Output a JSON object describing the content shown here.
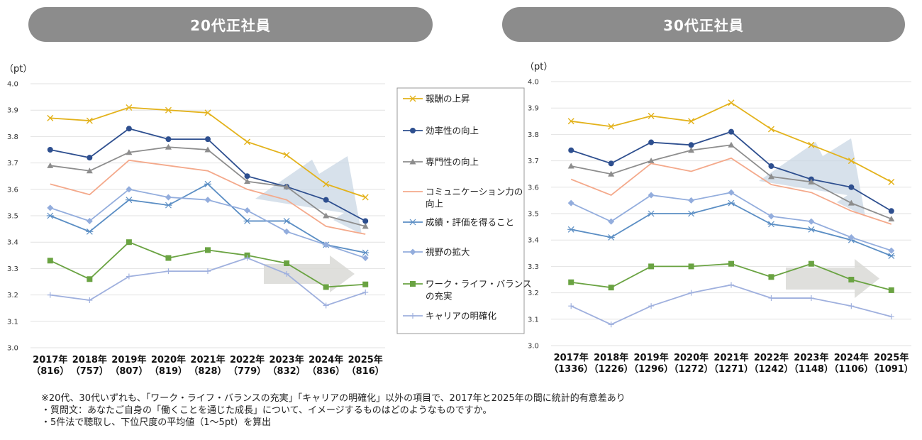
{
  "headers": {
    "left": "20代正社員",
    "right": "30代正社員"
  },
  "notes": [
    "※20代、30代いずれも、「ワーク・ライフ・バランスの充実」「キャリアの明確化」以外の項目で、2017年と2025年の間に統計的有意差あり",
    "・質問文：あなたご自身の「働くことを通じた成長」について、イメージするものはどのようなものですか。",
    "・5件法で聴取し、下位尺度の平均値（1～5pt）を算出"
  ],
  "legend": [
    {
      "label": [
        "報酬の上昇"
      ],
      "color": "#e3b21b",
      "marker": "x"
    },
    {
      "label": [
        "効率性の向上"
      ],
      "color": "#2e4f8f",
      "marker": "circle"
    },
    {
      "label": [
        "専門性の向上"
      ],
      "color": "#8d8d8d",
      "marker": "triangle"
    },
    {
      "label": [
        "コミュニケーション力の",
        "向上"
      ],
      "color": "#f4a98b",
      "marker": "none"
    },
    {
      "label": [
        "成績・評価を得ること"
      ],
      "color": "#5b8ec4",
      "marker": "star"
    },
    {
      "label": [
        "視野の拡大"
      ],
      "color": "#93addd",
      "marker": "diamond"
    },
    {
      "label": [
        "ワーク・ライフ・バランス",
        "の充実"
      ],
      "color": "#6aa342",
      "marker": "square"
    },
    {
      "label": [
        "キャリアの明確化"
      ],
      "color": "#9fb0de",
      "marker": "plus"
    }
  ],
  "chart_data": [
    {
      "type": "line",
      "title": "20代正社員",
      "ylabel": "（pt）",
      "ylim": [
        3.0,
        4.0
      ],
      "yticks": [
        "4.0",
        "3.9",
        "3.8",
        "3.7",
        "3.6",
        "3.5",
        "3.4",
        "3.3",
        "3.2",
        "3.1",
        "3.0"
      ],
      "categories": [
        "2017年",
        "2018年",
        "2019年",
        "2020年",
        "2021年",
        "2022年",
        "2023年",
        "2024年",
        "2025年"
      ],
      "sample_sizes": [
        "（816）",
        "（757）",
        "（807）",
        "（819）",
        "（828）",
        "（779）",
        "（832）",
        "（836）",
        "（816）"
      ],
      "grid": true,
      "series": [
        {
          "name": "報酬の上昇",
          "values": [
            3.87,
            3.86,
            3.91,
            3.9,
            3.89,
            3.78,
            3.73,
            3.62,
            3.57
          ]
        },
        {
          "name": "効率性の向上",
          "values": [
            3.75,
            3.72,
            3.83,
            3.79,
            3.79,
            3.65,
            3.61,
            3.56,
            3.48
          ]
        },
        {
          "name": "専門性の向上",
          "values": [
            3.69,
            3.67,
            3.74,
            3.76,
            3.75,
            3.63,
            3.61,
            3.5,
            3.46
          ]
        },
        {
          "name": "コミュニケーション力の向上",
          "values": [
            3.62,
            3.58,
            3.71,
            3.69,
            3.67,
            3.6,
            3.56,
            3.46,
            3.43
          ]
        },
        {
          "name": "成績・評価を得ること",
          "values": [
            3.5,
            3.44,
            3.56,
            3.54,
            3.62,
            3.48,
            3.48,
            3.39,
            3.36
          ]
        },
        {
          "name": "視野の拡大",
          "values": [
            3.53,
            3.48,
            3.6,
            3.57,
            3.56,
            3.52,
            3.44,
            3.39,
            3.34
          ]
        },
        {
          "name": "ワーク・ライフ・バランスの充実",
          "values": [
            3.33,
            3.26,
            3.4,
            3.34,
            3.37,
            3.35,
            3.32,
            3.23,
            3.24
          ]
        },
        {
          "name": "キャリアの明確化",
          "values": [
            3.2,
            3.18,
            3.27,
            3.29,
            3.29,
            3.34,
            3.28,
            3.16,
            3.21
          ]
        }
      ]
    },
    {
      "type": "line",
      "title": "30代正社員",
      "ylabel": "（pt）",
      "ylim": [
        3.0,
        4.0
      ],
      "yticks": [
        "4.0",
        "3.9",
        "3.8",
        "3.7",
        "3.6",
        "3.5",
        "3.4",
        "3.3",
        "3.2",
        "3.1",
        "3.0"
      ],
      "categories": [
        "2017年",
        "2018年",
        "2019年",
        "2020年",
        "2021年",
        "2022年",
        "2023年",
        "2024年",
        "2025年"
      ],
      "sample_sizes": [
        "（1336）",
        "（1226）",
        "（1296）",
        "（1272）",
        "（1271）",
        "（1242）",
        "（1148）",
        "（1106）",
        "（1091）"
      ],
      "grid": true,
      "series": [
        {
          "name": "報酬の上昇",
          "values": [
            3.85,
            3.83,
            3.87,
            3.85,
            3.92,
            3.82,
            3.76,
            3.7,
            3.62
          ]
        },
        {
          "name": "効率性の向上",
          "values": [
            3.74,
            3.69,
            3.77,
            3.76,
            3.81,
            3.68,
            3.63,
            3.6,
            3.51
          ]
        },
        {
          "name": "専門性の向上",
          "values": [
            3.68,
            3.65,
            3.7,
            3.74,
            3.76,
            3.64,
            3.62,
            3.54,
            3.48
          ]
        },
        {
          "name": "コミュニケーション力の向上",
          "values": [
            3.63,
            3.57,
            3.69,
            3.66,
            3.71,
            3.61,
            3.58,
            3.51,
            3.46
          ]
        },
        {
          "name": "成績・評価を得ること",
          "values": [
            3.44,
            3.41,
            3.5,
            3.5,
            3.54,
            3.46,
            3.44,
            3.4,
            3.34
          ]
        },
        {
          "name": "視野の拡大",
          "values": [
            3.54,
            3.47,
            3.57,
            3.55,
            3.58,
            3.49,
            3.47,
            3.41,
            3.36
          ]
        },
        {
          "name": "ワーク・ライフ・バランスの充実",
          "values": [
            3.24,
            3.22,
            3.3,
            3.3,
            3.31,
            3.26,
            3.31,
            3.25,
            3.21
          ]
        },
        {
          "name": "キャリアの明確化",
          "values": [
            3.15,
            3.08,
            3.15,
            3.2,
            3.23,
            3.18,
            3.18,
            3.15,
            3.11
          ]
        }
      ]
    }
  ]
}
